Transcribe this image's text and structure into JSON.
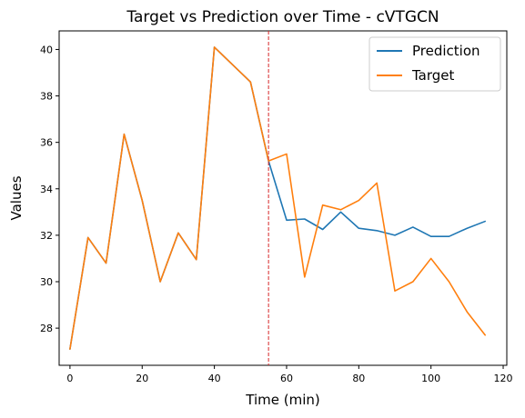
{
  "chart_data": {
    "type": "line",
    "title": "Target vs Prediction over Time - cVTGCN",
    "xlabel": "Time (min)",
    "ylabel": "Values",
    "xlim": [
      -3,
      121
    ],
    "ylim": [
      26.4,
      40.8
    ],
    "xticks": [
      0,
      20,
      40,
      60,
      80,
      100,
      120
    ],
    "yticks": [
      28,
      30,
      32,
      34,
      36,
      38,
      40
    ],
    "grid": false,
    "legend": "top-right",
    "vline": {
      "x": 55,
      "color": "#d62728",
      "style": "dashed"
    },
    "series": [
      {
        "name": "Prediction",
        "color": "#1f77b4",
        "x": [
          0,
          5,
          10,
          15,
          20,
          25,
          30,
          35,
          40,
          45,
          50,
          55,
          60,
          65,
          70,
          75,
          80,
          85,
          90,
          95,
          100,
          105,
          110,
          115
        ],
        "y": [
          27.1,
          31.9,
          30.8,
          36.35,
          33.5,
          30.0,
          32.1,
          30.95,
          40.1,
          39.35,
          38.6,
          35.2,
          32.65,
          32.7,
          32.25,
          33.0,
          32.3,
          32.2,
          32.0,
          32.35,
          31.95,
          31.95,
          32.3,
          32.6
        ]
      },
      {
        "name": "Target",
        "color": "#ff7f0e",
        "x": [
          0,
          5,
          10,
          15,
          20,
          25,
          30,
          35,
          40,
          45,
          50,
          55,
          60,
          65,
          70,
          75,
          80,
          85,
          90,
          95,
          100,
          105,
          110,
          115
        ],
        "y": [
          27.1,
          31.9,
          30.8,
          36.35,
          33.5,
          30.0,
          32.1,
          30.95,
          40.1,
          39.35,
          38.6,
          35.2,
          35.5,
          30.2,
          33.3,
          33.1,
          33.5,
          34.25,
          29.6,
          30.0,
          31.0,
          30.0,
          28.7,
          27.7
        ]
      }
    ]
  }
}
